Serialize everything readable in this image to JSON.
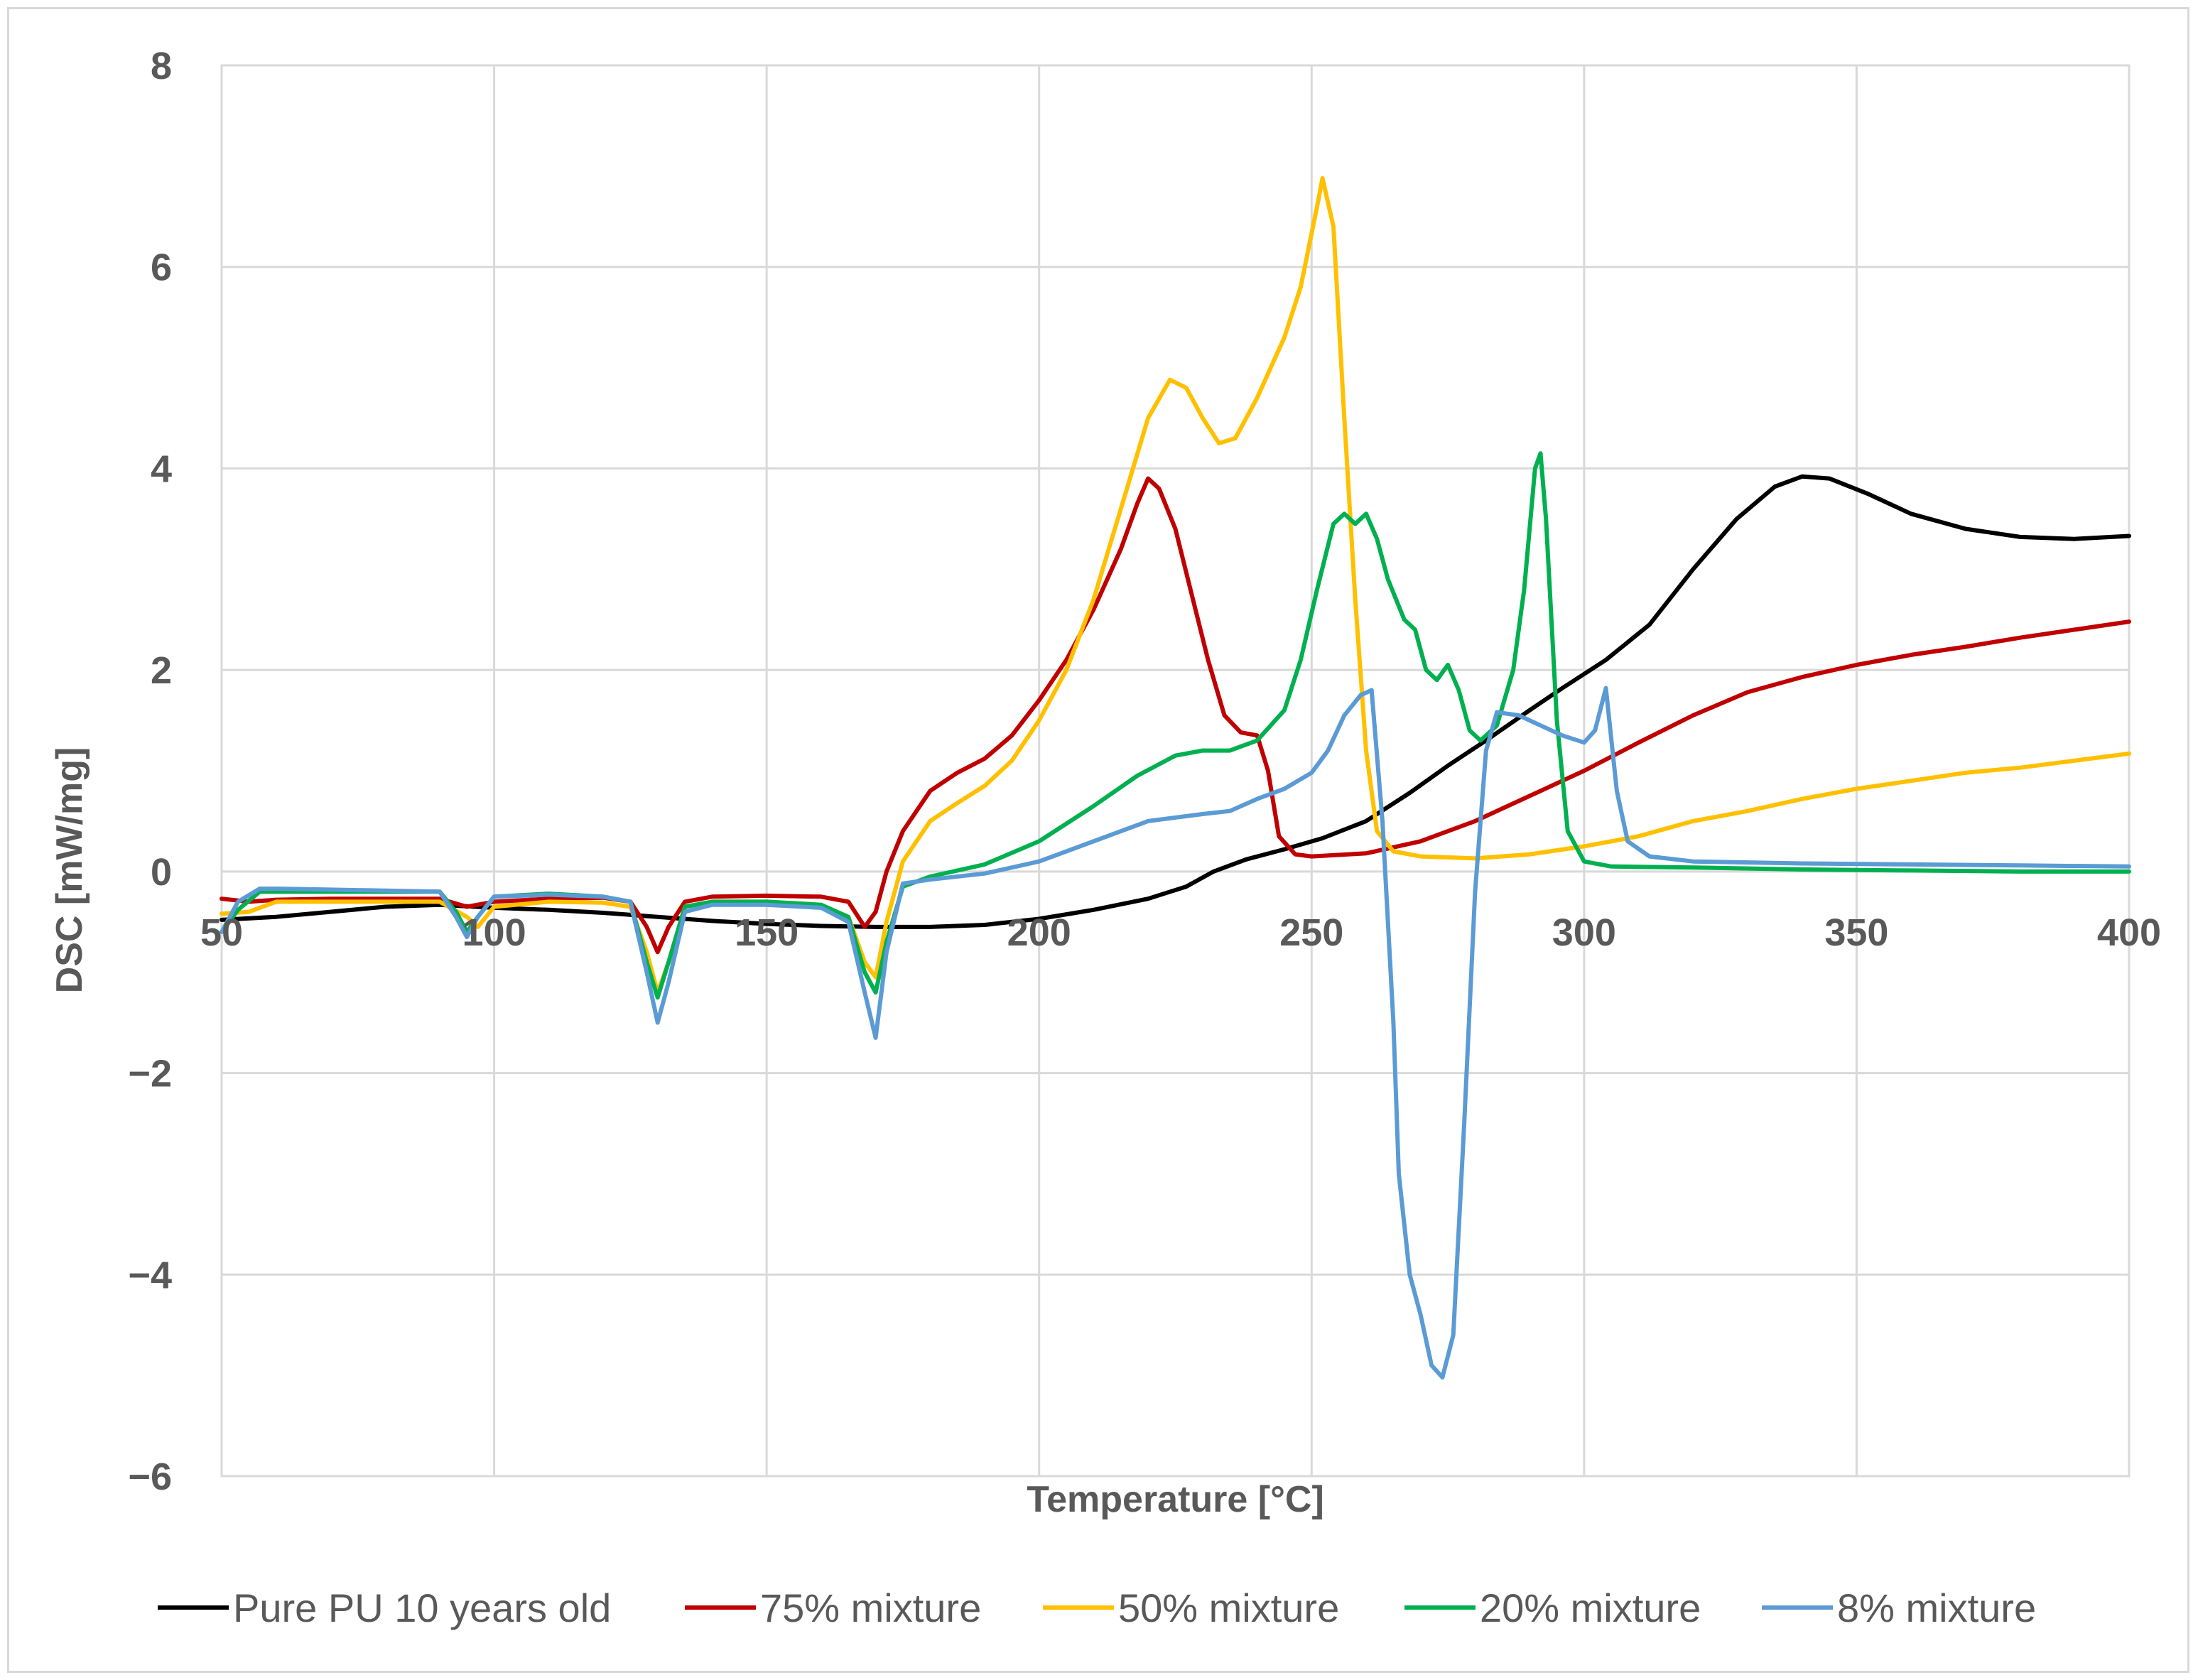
{
  "chart_data": {
    "type": "line",
    "title": "",
    "xlabel": "Temperature [°C]",
    "ylabel": "DSC [mW/mg]",
    "xlim": [
      50,
      400
    ],
    "ylim": [
      -6,
      8
    ],
    "x_ticks": [
      50,
      100,
      150,
      200,
      250,
      300,
      350,
      400
    ],
    "x_tick_labels": [
      "50",
      "100",
      "150",
      "200",
      "250",
      "300",
      "350",
      "400"
    ],
    "y_ticks": [
      8,
      6,
      4,
      2,
      0,
      -2,
      -4,
      -6
    ],
    "y_tick_labels": [
      "8",
      "6",
      "4",
      "2",
      "0",
      "−2",
      "−4",
      "−6"
    ],
    "grid": true,
    "legend_position": "bottom",
    "series": [
      {
        "name": "Pure PU 10 years old",
        "color": "#000000",
        "points": [
          [
            50,
            -0.48
          ],
          [
            60,
            -0.45
          ],
          [
            70,
            -0.4
          ],
          [
            80,
            -0.35
          ],
          [
            90,
            -0.33
          ],
          [
            100,
            -0.36
          ],
          [
            110,
            -0.38
          ],
          [
            120,
            -0.41
          ],
          [
            130,
            -0.45
          ],
          [
            140,
            -0.49
          ],
          [
            150,
            -0.52
          ],
          [
            160,
            -0.54
          ],
          [
            170,
            -0.55
          ],
          [
            180,
            -0.55
          ],
          [
            190,
            -0.53
          ],
          [
            200,
            -0.47
          ],
          [
            210,
            -0.38
          ],
          [
            220,
            -0.27
          ],
          [
            227,
            -0.15
          ],
          [
            232,
            0.0
          ],
          [
            238,
            0.12
          ],
          [
            245,
            0.22
          ],
          [
            252,
            0.33
          ],
          [
            260,
            0.5
          ],
          [
            268,
            0.78
          ],
          [
            275,
            1.05
          ],
          [
            282,
            1.3
          ],
          [
            290,
            1.6
          ],
          [
            296,
            1.82
          ],
          [
            304,
            2.1
          ],
          [
            312,
            2.45
          ],
          [
            320,
            3.0
          ],
          [
            328,
            3.5
          ],
          [
            335,
            3.82
          ],
          [
            340,
            3.92
          ],
          [
            345,
            3.9
          ],
          [
            352,
            3.75
          ],
          [
            360,
            3.55
          ],
          [
            370,
            3.4
          ],
          [
            380,
            3.32
          ],
          [
            390,
            3.3
          ],
          [
            400,
            3.33
          ]
        ]
      },
      {
        "name": "75% mixture",
        "color": "#c00000",
        "points": [
          [
            50,
            -0.27
          ],
          [
            55,
            -0.3
          ],
          [
            60,
            -0.28
          ],
          [
            70,
            -0.27
          ],
          [
            80,
            -0.27
          ],
          [
            90,
            -0.27
          ],
          [
            95,
            -0.35
          ],
          [
            100,
            -0.3
          ],
          [
            110,
            -0.27
          ],
          [
            120,
            -0.26
          ],
          [
            125,
            -0.3
          ],
          [
            128,
            -0.55
          ],
          [
            130,
            -0.8
          ],
          [
            132,
            -0.55
          ],
          [
            135,
            -0.3
          ],
          [
            140,
            -0.25
          ],
          [
            150,
            -0.24
          ],
          [
            160,
            -0.25
          ],
          [
            165,
            -0.3
          ],
          [
            168,
            -0.55
          ],
          [
            170,
            -0.4
          ],
          [
            172,
            0.0
          ],
          [
            175,
            0.4
          ],
          [
            180,
            0.8
          ],
          [
            185,
            0.98
          ],
          [
            190,
            1.12
          ],
          [
            195,
            1.35
          ],
          [
            200,
            1.7
          ],
          [
            205,
            2.1
          ],
          [
            210,
            2.6
          ],
          [
            215,
            3.2
          ],
          [
            218,
            3.65
          ],
          [
            220,
            3.9
          ],
          [
            222,
            3.8
          ],
          [
            225,
            3.4
          ],
          [
            228,
            2.75
          ],
          [
            231,
            2.1
          ],
          [
            234,
            1.55
          ],
          [
            237,
            1.38
          ],
          [
            240,
            1.35
          ],
          [
            242,
            1.0
          ],
          [
            244,
            0.35
          ],
          [
            247,
            0.17
          ],
          [
            250,
            0.15
          ],
          [
            260,
            0.18
          ],
          [
            270,
            0.3
          ],
          [
            280,
            0.5
          ],
          [
            290,
            0.75
          ],
          [
            300,
            1.0
          ],
          [
            310,
            1.28
          ],
          [
            320,
            1.55
          ],
          [
            330,
            1.78
          ],
          [
            340,
            1.93
          ],
          [
            350,
            2.05
          ],
          [
            360,
            2.15
          ],
          [
            370,
            2.23
          ],
          [
            380,
            2.32
          ],
          [
            390,
            2.4
          ],
          [
            400,
            2.48
          ]
        ]
      },
      {
        "name": "50% mixture",
        "color": "#ffc000",
        "points": [
          [
            50,
            -0.42
          ],
          [
            55,
            -0.4
          ],
          [
            60,
            -0.3
          ],
          [
            70,
            -0.3
          ],
          [
            80,
            -0.3
          ],
          [
            90,
            -0.3
          ],
          [
            95,
            -0.45
          ],
          [
            97,
            -0.55
          ],
          [
            100,
            -0.35
          ],
          [
            110,
            -0.3
          ],
          [
            120,
            -0.31
          ],
          [
            125,
            -0.35
          ],
          [
            128,
            -0.8
          ],
          [
            130,
            -1.2
          ],
          [
            132,
            -0.9
          ],
          [
            135,
            -0.35
          ],
          [
            140,
            -0.3
          ],
          [
            150,
            -0.3
          ],
          [
            160,
            -0.33
          ],
          [
            165,
            -0.45
          ],
          [
            168,
            -0.9
          ],
          [
            170,
            -1.05
          ],
          [
            172,
            -0.5
          ],
          [
            175,
            0.1
          ],
          [
            180,
            0.5
          ],
          [
            185,
            0.68
          ],
          [
            190,
            0.85
          ],
          [
            195,
            1.1
          ],
          [
            200,
            1.5
          ],
          [
            205,
            2.0
          ],
          [
            210,
            2.7
          ],
          [
            215,
            3.6
          ],
          [
            220,
            4.5
          ],
          [
            224,
            4.88
          ],
          [
            227,
            4.8
          ],
          [
            230,
            4.5
          ],
          [
            233,
            4.25
          ],
          [
            236,
            4.3
          ],
          [
            240,
            4.7
          ],
          [
            245,
            5.3
          ],
          [
            248,
            5.8
          ],
          [
            251,
            6.6
          ],
          [
            252,
            6.88
          ],
          [
            254,
            6.4
          ],
          [
            256,
            4.5
          ],
          [
            258,
            2.7
          ],
          [
            260,
            1.2
          ],
          [
            262,
            0.4
          ],
          [
            265,
            0.2
          ],
          [
            270,
            0.15
          ],
          [
            280,
            0.13
          ],
          [
            290,
            0.17
          ],
          [
            300,
            0.25
          ],
          [
            310,
            0.35
          ],
          [
            320,
            0.5
          ],
          [
            330,
            0.6
          ],
          [
            340,
            0.72
          ],
          [
            350,
            0.82
          ],
          [
            360,
            0.9
          ],
          [
            370,
            0.98
          ],
          [
            380,
            1.03
          ],
          [
            390,
            1.1
          ],
          [
            400,
            1.17
          ]
        ]
      },
      {
        "name": "20% mixture",
        "color": "#00b050",
        "points": [
          [
            50,
            -0.6
          ],
          [
            53,
            -0.38
          ],
          [
            57,
            -0.2
          ],
          [
            60,
            -0.2
          ],
          [
            70,
            -0.2
          ],
          [
            80,
            -0.2
          ],
          [
            90,
            -0.2
          ],
          [
            93,
            -0.4
          ],
          [
            95,
            -0.6
          ],
          [
            97,
            -0.45
          ],
          [
            100,
            -0.25
          ],
          [
            110,
            -0.22
          ],
          [
            120,
            -0.25
          ],
          [
            125,
            -0.3
          ],
          [
            128,
            -0.9
          ],
          [
            130,
            -1.25
          ],
          [
            132,
            -0.9
          ],
          [
            135,
            -0.35
          ],
          [
            140,
            -0.3
          ],
          [
            150,
            -0.3
          ],
          [
            160,
            -0.33
          ],
          [
            165,
            -0.45
          ],
          [
            168,
            -1.0
          ],
          [
            170,
            -1.2
          ],
          [
            172,
            -0.7
          ],
          [
            175,
            -0.15
          ],
          [
            180,
            -0.05
          ],
          [
            190,
            0.07
          ],
          [
            200,
            0.3
          ],
          [
            210,
            0.65
          ],
          [
            218,
            0.95
          ],
          [
            225,
            1.15
          ],
          [
            230,
            1.2
          ],
          [
            235,
            1.2
          ],
          [
            240,
            1.3
          ],
          [
            245,
            1.6
          ],
          [
            248,
            2.1
          ],
          [
            251,
            2.8
          ],
          [
            254,
            3.45
          ],
          [
            256,
            3.55
          ],
          [
            258,
            3.45
          ],
          [
            260,
            3.55
          ],
          [
            262,
            3.3
          ],
          [
            264,
            2.9
          ],
          [
            267,
            2.5
          ],
          [
            269,
            2.4
          ],
          [
            271,
            2.0
          ],
          [
            273,
            1.9
          ],
          [
            275,
            2.05
          ],
          [
            277,
            1.8
          ],
          [
            279,
            1.4
          ],
          [
            281,
            1.3
          ],
          [
            284,
            1.45
          ],
          [
            287,
            2.0
          ],
          [
            289,
            2.8
          ],
          [
            291,
            4.0
          ],
          [
            292,
            4.15
          ],
          [
            293,
            3.5
          ],
          [
            295,
            1.5
          ],
          [
            297,
            0.4
          ],
          [
            300,
            0.1
          ],
          [
            305,
            0.05
          ],
          [
            320,
            0.04
          ],
          [
            340,
            0.02
          ],
          [
            360,
            0.01
          ],
          [
            380,
            0.0
          ],
          [
            400,
            0.0
          ]
        ]
      },
      {
        "name": "8% mixture",
        "color": "#5b9bd5",
        "points": [
          [
            50,
            -0.6
          ],
          [
            53,
            -0.3
          ],
          [
            57,
            -0.17
          ],
          [
            60,
            -0.17
          ],
          [
            70,
            -0.18
          ],
          [
            80,
            -0.19
          ],
          [
            90,
            -0.2
          ],
          [
            93,
            -0.45
          ],
          [
            95,
            -0.65
          ],
          [
            97,
            -0.45
          ],
          [
            100,
            -0.25
          ],
          [
            110,
            -0.23
          ],
          [
            120,
            -0.25
          ],
          [
            125,
            -0.3
          ],
          [
            128,
            -1.0
          ],
          [
            130,
            -1.5
          ],
          [
            132,
            -1.1
          ],
          [
            135,
            -0.4
          ],
          [
            140,
            -0.33
          ],
          [
            150,
            -0.33
          ],
          [
            160,
            -0.36
          ],
          [
            165,
            -0.5
          ],
          [
            168,
            -1.2
          ],
          [
            170,
            -1.65
          ],
          [
            172,
            -0.8
          ],
          [
            175,
            -0.12
          ],
          [
            180,
            -0.08
          ],
          [
            190,
            -0.02
          ],
          [
            200,
            0.1
          ],
          [
            210,
            0.3
          ],
          [
            220,
            0.5
          ],
          [
            230,
            0.57
          ],
          [
            235,
            0.6
          ],
          [
            240,
            0.72
          ],
          [
            245,
            0.82
          ],
          [
            250,
            0.98
          ],
          [
            253,
            1.2
          ],
          [
            256,
            1.55
          ],
          [
            259,
            1.75
          ],
          [
            261,
            1.8
          ],
          [
            263,
            0.5
          ],
          [
            265,
            -1.5
          ],
          [
            266,
            -3.0
          ],
          [
            268,
            -4.0
          ],
          [
            270,
            -4.4
          ],
          [
            272,
            -4.9
          ],
          [
            274,
            -5.02
          ],
          [
            276,
            -4.6
          ],
          [
            278,
            -2.5
          ],
          [
            280,
            -0.2
          ],
          [
            282,
            1.2
          ],
          [
            284,
            1.58
          ],
          [
            288,
            1.55
          ],
          [
            292,
            1.45
          ],
          [
            296,
            1.35
          ],
          [
            300,
            1.28
          ],
          [
            302,
            1.4
          ],
          [
            304,
            1.82
          ],
          [
            306,
            0.8
          ],
          [
            308,
            0.3
          ],
          [
            312,
            0.15
          ],
          [
            320,
            0.1
          ],
          [
            340,
            0.08
          ],
          [
            360,
            0.07
          ],
          [
            380,
            0.06
          ],
          [
            400,
            0.05
          ]
        ]
      }
    ]
  }
}
